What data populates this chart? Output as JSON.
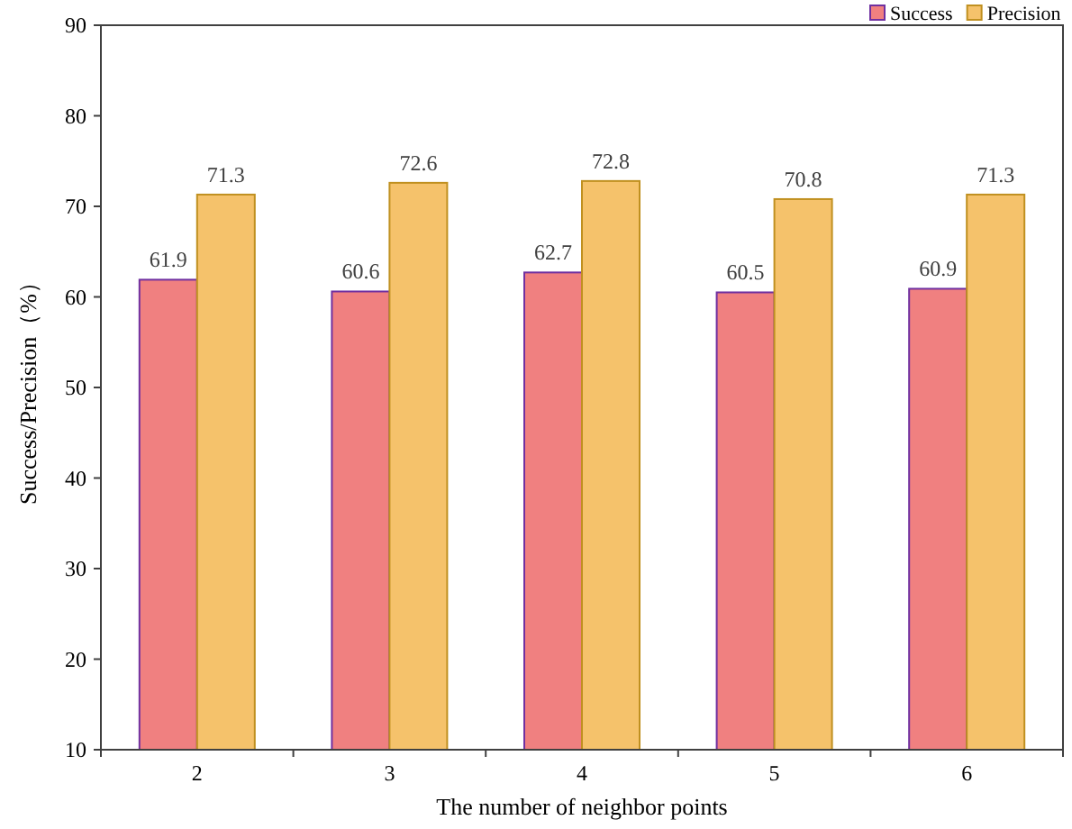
{
  "chart_data": {
    "type": "bar",
    "xlabel": "The number of neighbor points",
    "ylabel": "Success/Precision（%）",
    "categories": [
      "2",
      "3",
      "4",
      "5",
      "6"
    ],
    "series": [
      {
        "name": "Success",
        "color": "#f08080",
        "values": [
          61.9,
          60.6,
          62.7,
          60.5,
          60.9
        ]
      },
      {
        "name": "Precision",
        "color": "#f5c26b",
        "values": [
          71.3,
          72.6,
          72.8,
          70.8,
          71.3
        ]
      }
    ],
    "ylim": [
      10,
      90
    ],
    "yticks": [
      10,
      20,
      30,
      40,
      50,
      60,
      70,
      80,
      90
    ],
    "data_labels": true,
    "legend": "top right",
    "grid": false
  }
}
